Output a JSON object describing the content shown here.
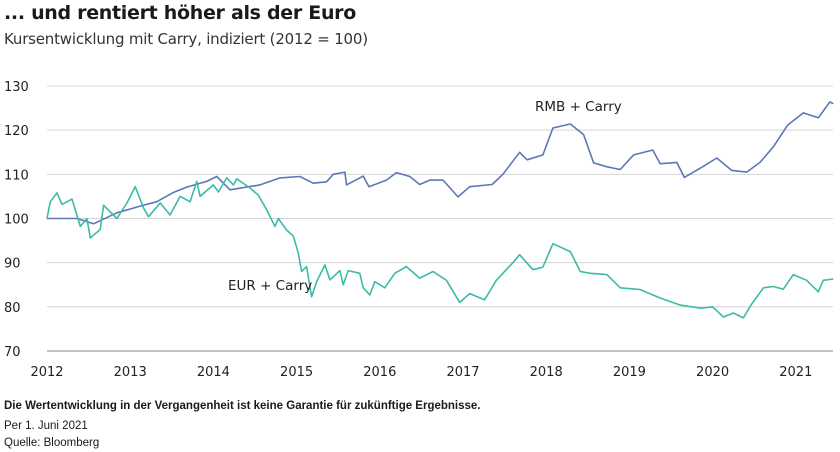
{
  "chart_data": {
    "type": "line",
    "title": "... und rentiert höher als der Euro",
    "subtitle": "Kursentwicklung mit Carry, indiziert (2012 = 100)",
    "xlabel": "",
    "ylabel": "",
    "xlim": [
      2012,
      2021.45
    ],
    "ylim": [
      70,
      130
    ],
    "xticks": [
      "2012",
      "2013",
      "2014",
      "2015",
      "2016",
      "2017",
      "2018",
      "2019",
      "2020",
      "2021"
    ],
    "yticks": [
      "70",
      "80",
      "90",
      "100",
      "110",
      "120",
      "130"
    ],
    "grid": "horizontal",
    "legend": "inline labels",
    "colors": {
      "rmb": "#5a78b6",
      "eur": "#3dbba6",
      "grid": "#d4d4d4",
      "axis": "#b0b0b0"
    },
    "series": [
      {
        "name": "RMB + Carry",
        "x": [
          2012.0,
          2012.36,
          2012.56,
          2012.84,
          2013.12,
          2013.32,
          2013.52,
          2013.68,
          2013.92,
          2014.04,
          2014.2,
          2014.56,
          2014.8,
          2015.04,
          2015.2,
          2015.36,
          2015.44,
          2015.58,
          2015.6,
          2015.8,
          2015.87,
          2016.08,
          2016.2,
          2016.36,
          2016.48,
          2016.6,
          2016.76,
          2016.94,
          2017.08,
          2017.35,
          2017.48,
          2017.68,
          2017.77,
          2017.96,
          2018.08,
          2018.29,
          2018.45,
          2018.57,
          2018.73,
          2018.89,
          2019.05,
          2019.28,
          2019.37,
          2019.57,
          2019.66,
          2019.88,
          2020.05,
          2020.23,
          2020.41,
          2020.57,
          2020.73,
          2020.9,
          2021.09,
          2021.27,
          2021.41,
          2021.45
        ],
        "y": [
          100,
          100,
          98.8,
          101.3,
          102.8,
          103.8,
          105.9,
          107.1,
          108.4,
          109.5,
          106.5,
          107.6,
          109.2,
          109.5,
          108,
          108.3,
          110,
          110.5,
          107.6,
          109.6,
          107.2,
          108.7,
          110.4,
          109.5,
          107.7,
          108.7,
          108.7,
          104.9,
          107.2,
          107.7,
          110,
          115,
          113.3,
          114.4,
          120.5,
          121.4,
          119,
          112.6,
          111.7,
          111.1,
          114.4,
          115.5,
          112.4,
          112.7,
          109.3,
          111.7,
          113.7,
          110.9,
          110.5,
          112.7,
          116.2,
          121.1,
          123.9,
          122.8,
          126.4,
          126
        ]
      },
      {
        "name": "EUR + Carry",
        "x": [
          2012.0,
          2012.04,
          2012.12,
          2012.18,
          2012.3,
          2012.4,
          2012.48,
          2012.52,
          2012.64,
          2012.68,
          2012.84,
          2012.96,
          2013.06,
          2013.16,
          2013.22,
          2013.36,
          2013.48,
          2013.6,
          2013.72,
          2013.8,
          2013.84,
          2014.0,
          2014.06,
          2014.16,
          2014.24,
          2014.28,
          2014.44,
          2014.54,
          2014.64,
          2014.74,
          2014.78,
          2014.88,
          2014.96,
          2015.02,
          2015.06,
          2015.12,
          2015.18,
          2015.24,
          2015.34,
          2015.4,
          2015.52,
          2015.56,
          2015.62,
          2015.76,
          2015.8,
          2015.88,
          2015.94,
          2016.06,
          2016.18,
          2016.32,
          2016.48,
          2016.64,
          2016.8,
          2016.96,
          2017.08,
          2017.26,
          2017.4,
          2017.6,
          2017.68,
          2017.84,
          2017.96,
          2018.08,
          2018.29,
          2018.41,
          2018.53,
          2018.73,
          2018.89,
          2019.13,
          2019.37,
          2019.61,
          2019.86,
          2020.0,
          2020.13,
          2020.25,
          2020.37,
          2020.46,
          2020.61,
          2020.73,
          2020.85,
          2020.97,
          2021.13,
          2021.27,
          2021.33,
          2021.45
        ],
        "y": [
          100,
          103.8,
          105.8,
          103.2,
          104.4,
          98.2,
          100,
          95.6,
          97.5,
          103,
          100,
          103.5,
          107.2,
          102.4,
          100.4,
          103.5,
          100.8,
          105,
          103.8,
          108.4,
          105,
          107.6,
          106,
          109.2,
          107.6,
          109,
          106.9,
          105.3,
          102,
          98.2,
          100,
          97.4,
          96,
          92.2,
          88,
          89.1,
          82.3,
          85.7,
          89.5,
          86.1,
          88.2,
          85,
          88.2,
          87.6,
          84.3,
          82.7,
          85.7,
          84.3,
          87.6,
          89.1,
          86.5,
          88,
          86,
          81,
          83,
          81.6,
          86,
          90,
          91.8,
          88.4,
          89,
          94.3,
          92.5,
          88,
          87.6,
          87.3,
          84.3,
          83.9,
          82,
          80.4,
          79.7,
          80,
          77.7,
          78.6,
          77.5,
          80.4,
          84.3,
          84.6,
          84,
          87.3,
          86,
          83.4,
          86,
          86.3
        ]
      }
    ]
  },
  "footer": {
    "disclaimer": "Die Wertentwicklung in der Vergangenheit ist keine Garantie für zukünftige Ergebnisse.",
    "as_of": "Per 1. Juni 2021",
    "source": "Quelle: Bloomberg"
  }
}
